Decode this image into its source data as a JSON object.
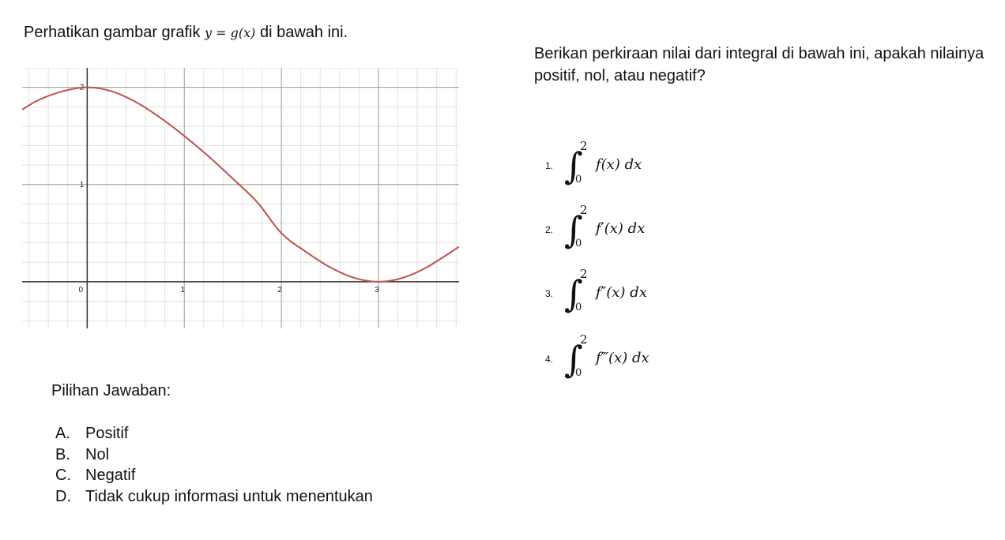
{
  "intro": {
    "prefix": "Perhatikan gambar grafik",
    "math": "y = g(x)",
    "suffix": "di bawah ini."
  },
  "question": "Berikan perkiraan nilai dari integral di bawah ini, apakah nilainya positif, nol, atau negatif?",
  "chart_data": {
    "type": "line",
    "title": "",
    "xlabel": "",
    "ylabel": "",
    "x_ticks": [
      "0",
      "1",
      "2",
      "3"
    ],
    "y_ticks": [
      "1",
      "2"
    ],
    "xlim": [
      -0.67,
      3.83
    ],
    "ylim": [
      -0.48,
      2.2
    ],
    "grid": true,
    "series": [
      {
        "color": "#c0504d",
        "x": [
          -0.67,
          -0.5,
          -0.25,
          0,
          0.25,
          0.5,
          0.75,
          1,
          1.25,
          1.5,
          1.75,
          2,
          2.25,
          2.5,
          2.75,
          3,
          3.25,
          3.5,
          3.83
        ],
        "y": [
          1.77,
          1.87,
          1.96,
          2.0,
          1.96,
          1.85,
          1.69,
          1.5,
          1.29,
          1.06,
          0.82,
          0.5,
          0.31,
          0.15,
          0.04,
          0.0,
          0.04,
          0.15,
          0.36
        ]
      }
    ]
  },
  "integrals": [
    {
      "num": "1.",
      "upper": "2",
      "lower": "0",
      "body": "f(x) dx"
    },
    {
      "num": "2.",
      "upper": "2",
      "lower": "0",
      "body": "f′(x) dx"
    },
    {
      "num": "3.",
      "upper": "2",
      "lower": "0",
      "body": "f″(x) dx"
    },
    {
      "num": "4.",
      "upper": "2",
      "lower": "0",
      "body": "f‴(x) dx"
    }
  ],
  "choices_title": "Pilihan Jawaban:",
  "choices": [
    {
      "letter": "A.",
      "text": "Positif"
    },
    {
      "letter": "B.",
      "text": "Nol"
    },
    {
      "letter": "C.",
      "text": "Negatif"
    },
    {
      "letter": "D.",
      "text": "Tidak cukup informasi untuk menentukan"
    }
  ]
}
